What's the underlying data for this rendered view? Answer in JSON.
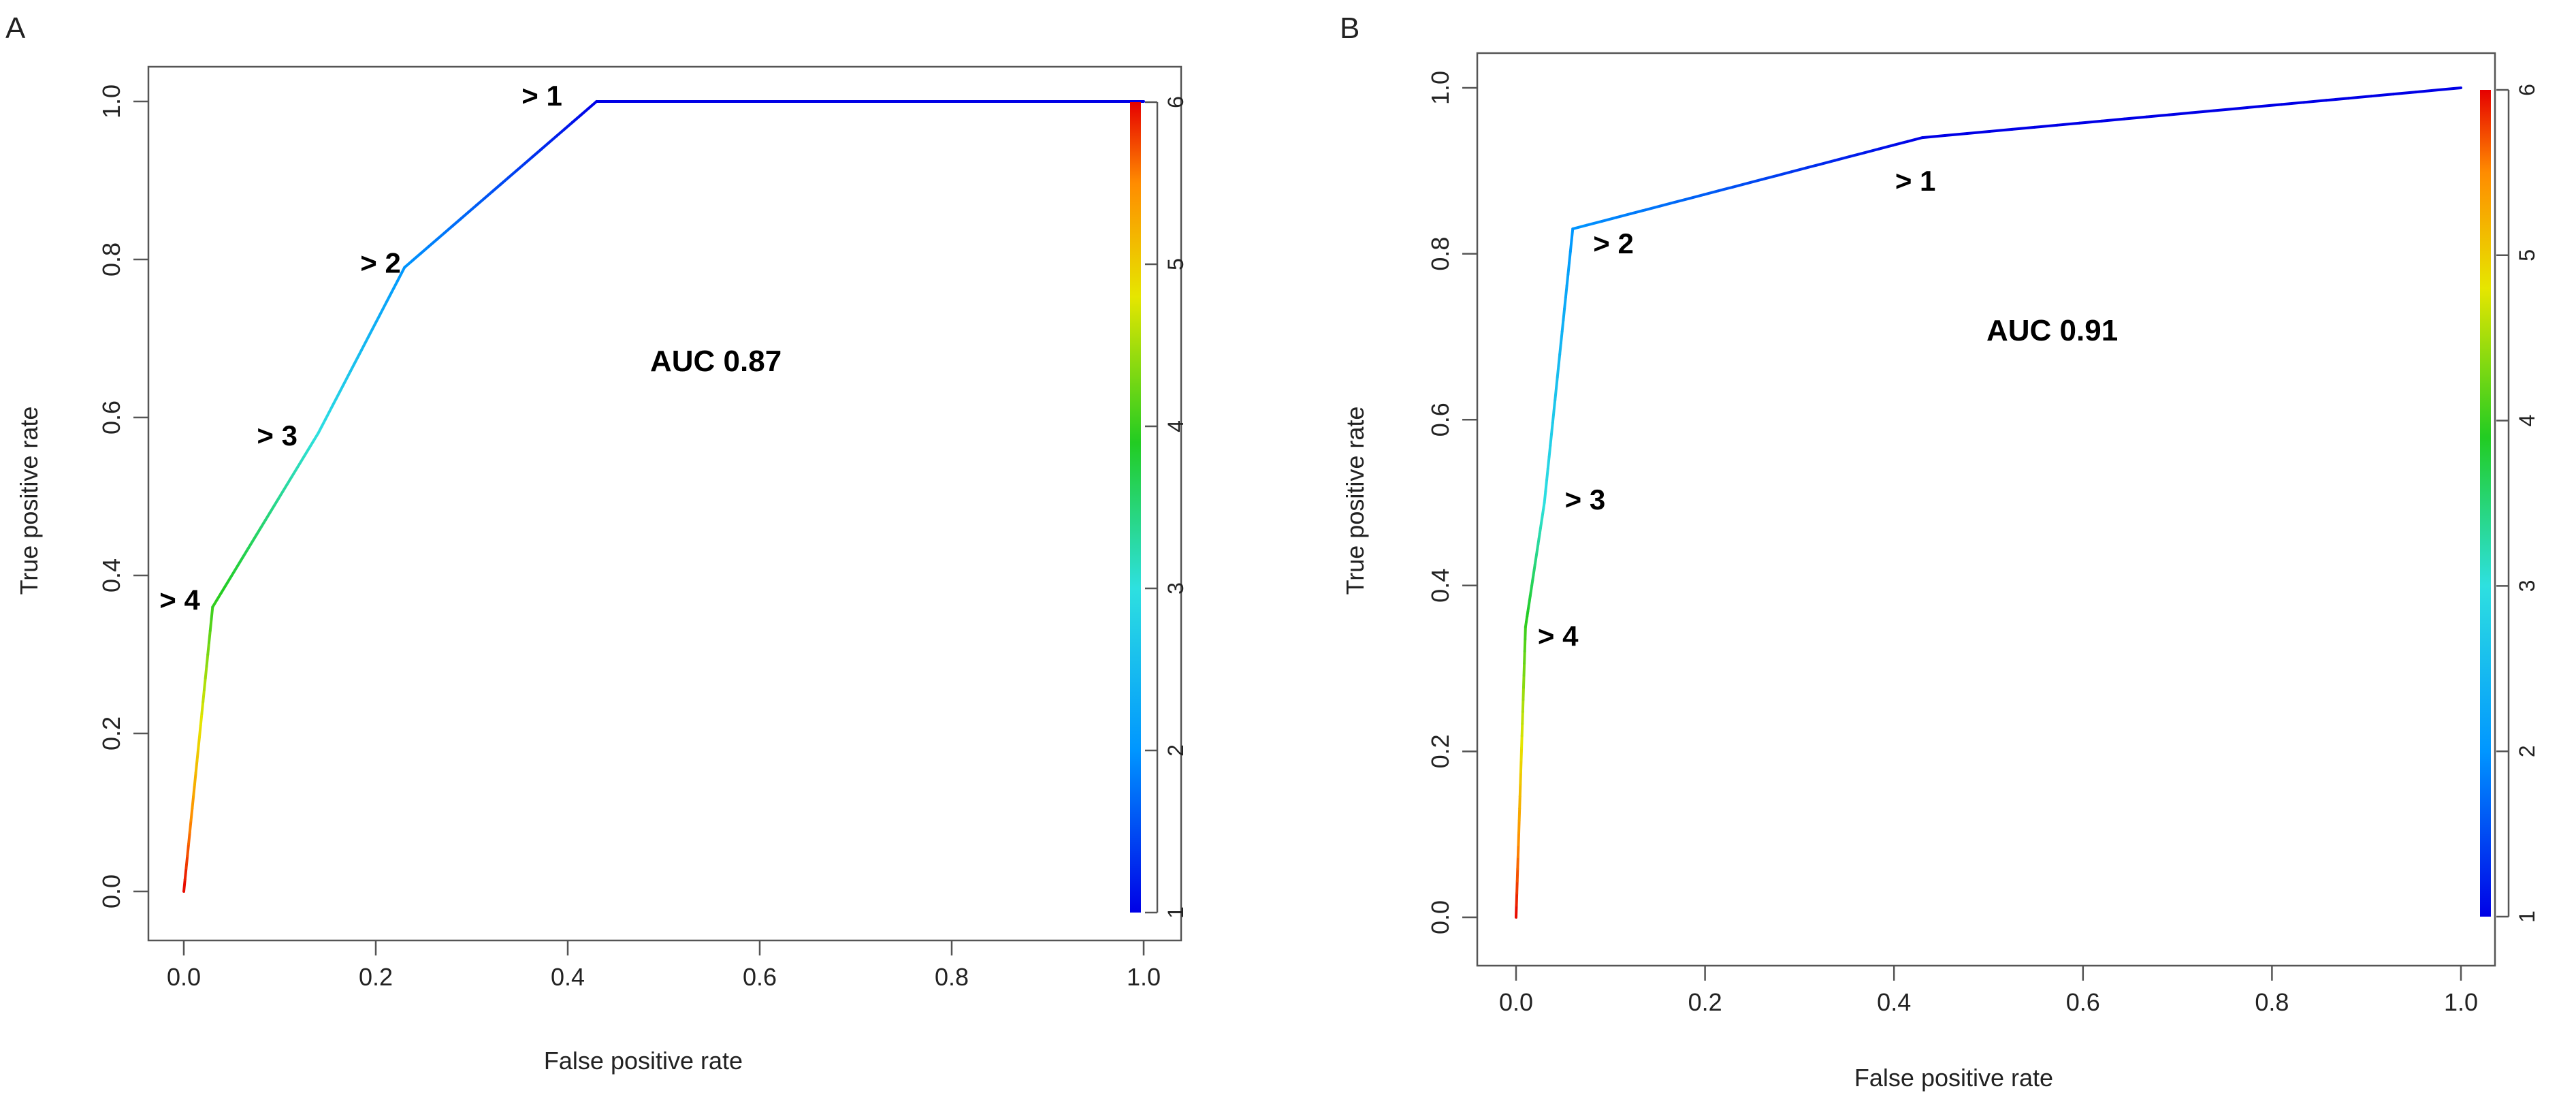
{
  "chart_data": [
    {
      "type": "line",
      "panel": "A",
      "xlabel": "False positive rate",
      "ylabel": "True positive rate",
      "xlim": [
        0,
        1
      ],
      "ylim": [
        0,
        1
      ],
      "x_ticks": [
        "0.0",
        "0.2",
        "0.4",
        "0.6",
        "0.8",
        "1.0"
      ],
      "y_ticks": [
        "0.0",
        "0.2",
        "0.4",
        "0.6",
        "0.8",
        "1.0"
      ],
      "colorbar_ticks": [
        "1",
        "2",
        "3",
        "4",
        "5",
        "6"
      ],
      "colorbar_range": [
        1,
        6
      ],
      "annotation": "AUC 0.87",
      "grid": false,
      "points": [
        {
          "fpr": 0.0,
          "tpr": 0.0,
          "cutoff": 6
        },
        {
          "fpr": 0.03,
          "tpr": 0.36,
          "cutoff": 4
        },
        {
          "fpr": 0.14,
          "tpr": 0.58,
          "cutoff": 3
        },
        {
          "fpr": 0.23,
          "tpr": 0.79,
          "cutoff": 2
        },
        {
          "fpr": 0.43,
          "tpr": 1.0,
          "cutoff": 1
        },
        {
          "fpr": 1.0,
          "tpr": 1.0,
          "cutoff": 1
        }
      ],
      "cut_labels": [
        {
          "text": "> 4",
          "fpr": 0.03,
          "tpr": 0.36
        },
        {
          "text": "> 3",
          "fpr": 0.14,
          "tpr": 0.58
        },
        {
          "text": "> 2",
          "fpr": 0.23,
          "tpr": 0.79
        },
        {
          "text": "> 1",
          "fpr": 0.43,
          "tpr": 1.0
        }
      ]
    },
    {
      "type": "line",
      "panel": "B",
      "xlabel": "False positive rate",
      "ylabel": "True positive rate",
      "xlim": [
        0,
        1
      ],
      "ylim": [
        0,
        1
      ],
      "x_ticks": [
        "0.0",
        "0.2",
        "0.4",
        "0.6",
        "0.8",
        "1.0"
      ],
      "y_ticks": [
        "0.0",
        "0.2",
        "0.4",
        "0.6",
        "0.8",
        "1.0"
      ],
      "colorbar_ticks": [
        "1",
        "2",
        "3",
        "4",
        "5",
        "6"
      ],
      "colorbar_range": [
        1,
        6
      ],
      "annotation": "AUC 0.91",
      "grid": false,
      "points": [
        {
          "fpr": 0.0,
          "tpr": 0.0,
          "cutoff": 6
        },
        {
          "fpr": 0.01,
          "tpr": 0.35,
          "cutoff": 4
        },
        {
          "fpr": 0.03,
          "tpr": 0.5,
          "cutoff": 3
        },
        {
          "fpr": 0.06,
          "tpr": 0.83,
          "cutoff": 2
        },
        {
          "fpr": 0.43,
          "tpr": 0.94,
          "cutoff": 1
        },
        {
          "fpr": 1.0,
          "tpr": 1.0,
          "cutoff": 1
        }
      ],
      "cut_labels": [
        {
          "text": "> 4",
          "fpr": 0.01,
          "tpr": 0.35
        },
        {
          "text": "> 3",
          "fpr": 0.03,
          "tpr": 0.5
        },
        {
          "text": "> 2",
          "fpr": 0.06,
          "tpr": 0.83
        },
        {
          "text": "> 1",
          "fpr": 0.43,
          "tpr": 0.94
        }
      ]
    }
  ]
}
